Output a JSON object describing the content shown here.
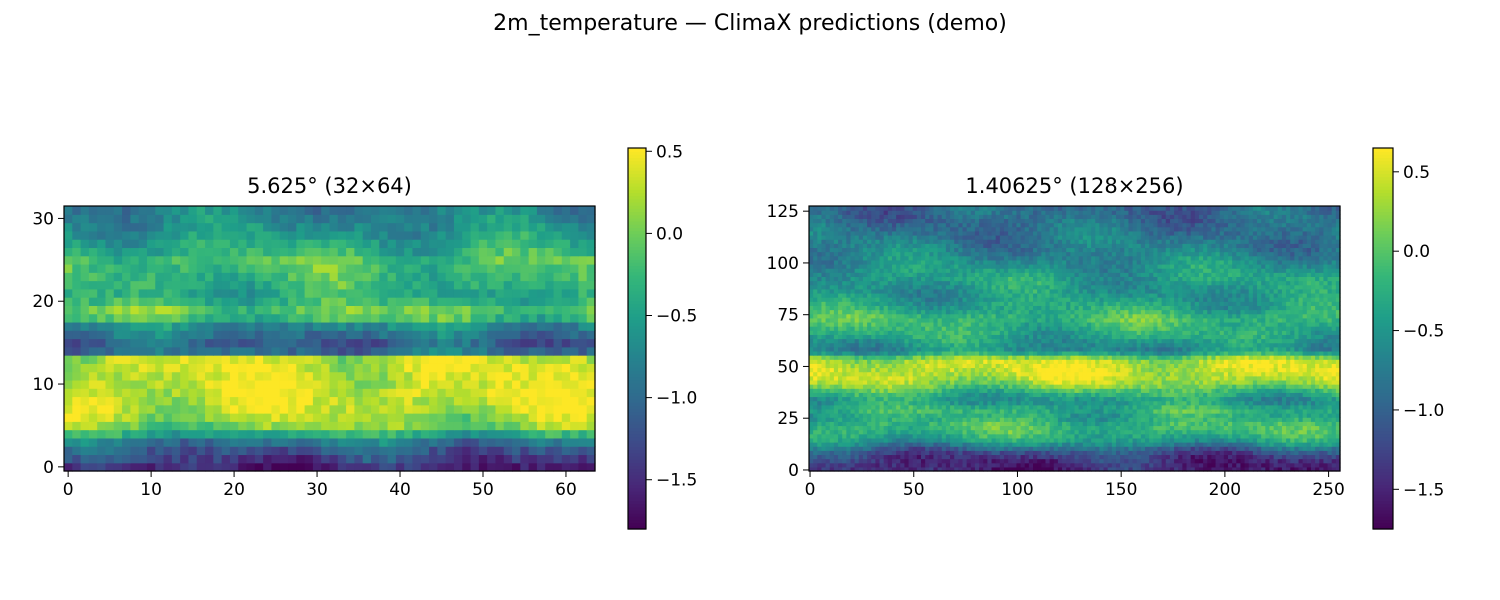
{
  "figure": {
    "suptitle": "2m_temperature — ClimaX predictions (demo)"
  },
  "chart_data": [
    {
      "type": "heatmap",
      "title": "5.625° (32×64)",
      "xlabel": "",
      "ylabel": "",
      "rows": 32,
      "cols": 64,
      "xlim": [
        -0.5,
        63.5
      ],
      "ylim": [
        -0.5,
        31.5
      ],
      "origin": "lower",
      "xticks": [
        0,
        10,
        20,
        30,
        40,
        50,
        60
      ],
      "xtick_labels": [
        "0",
        "10",
        "20",
        "30",
        "40",
        "50",
        "60"
      ],
      "yticks": [
        0,
        10,
        20,
        30
      ],
      "ytick_labels": [
        "0",
        "10",
        "20",
        "30"
      ],
      "colormap": "viridis",
      "vmin": -1.8,
      "vmax": 0.52,
      "colorbar_ticks": [
        -1.5,
        -1.0,
        -0.5,
        0.0,
        0.5
      ],
      "colorbar_tick_labels": [
        "−1.5",
        "−1.0",
        "−0.5",
        "0.0",
        "0.5"
      ],
      "row_profile": {
        "note": "approximate mean value by row (row 0 = bottom)",
        "values": [
          -1.55,
          -1.35,
          -1.15,
          -0.9,
          -0.4,
          0.05,
          0.2,
          0.3,
          0.35,
          0.38,
          0.35,
          0.32,
          0.35,
          0.3,
          -1.0,
          -1.1,
          -0.9,
          -0.7,
          -0.2,
          -0.05,
          -0.3,
          -0.4,
          -0.3,
          -0.25,
          -0.2,
          -0.15,
          -0.3,
          -0.45,
          -0.55,
          -0.65,
          -0.7,
          -0.8
        ]
      }
    },
    {
      "type": "heatmap",
      "title": "1.40625° (128×256)",
      "xlabel": "",
      "ylabel": "",
      "rows": 128,
      "cols": 256,
      "xlim": [
        -0.5,
        255.5
      ],
      "ylim": [
        -0.5,
        127.5
      ],
      "origin": "lower",
      "xticks": [
        0,
        50,
        100,
        150,
        200,
        250
      ],
      "xtick_labels": [
        "0",
        "50",
        "100",
        "150",
        "200",
        "250"
      ],
      "yticks": [
        0,
        25,
        50,
        75,
        100,
        125
      ],
      "ytick_labels": [
        "0",
        "25",
        "50",
        "75",
        "100",
        "125"
      ],
      "colormap": "viridis",
      "vmin": -1.75,
      "vmax": 0.65,
      "colorbar_ticks": [
        -1.5,
        -1.0,
        -0.5,
        0.0,
        0.5
      ],
      "colorbar_tick_labels": [
        "−1.5",
        "−1.0",
        "−0.5",
        "0.0",
        "0.5"
      ],
      "row_profile": {
        "note": "approximate mean value by row band (row 0 = bottom)",
        "values": [
          -1.5,
          -1.4,
          -1.1,
          -0.5,
          -0.2,
          -0.1,
          -0.3,
          -0.2,
          -0.5,
          -0.2,
          0.25,
          0.45,
          0.5,
          0.4,
          -0.6,
          -0.5,
          -0.3,
          -0.2,
          -0.1,
          -0.3,
          -0.4,
          -0.5,
          -0.45,
          -0.4,
          -0.5,
          -0.6,
          -0.7,
          -0.75,
          -0.8,
          -0.85,
          -0.9,
          -0.95
        ]
      }
    }
  ]
}
